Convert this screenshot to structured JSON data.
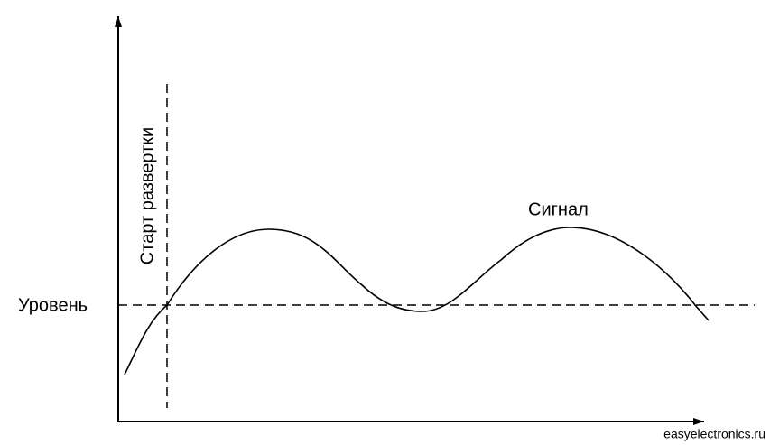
{
  "labels": {
    "sweep_start": "Старт развертки",
    "level": "Уровень",
    "signal": "Сигнал"
  },
  "watermark": "easyelectronics.ru"
}
